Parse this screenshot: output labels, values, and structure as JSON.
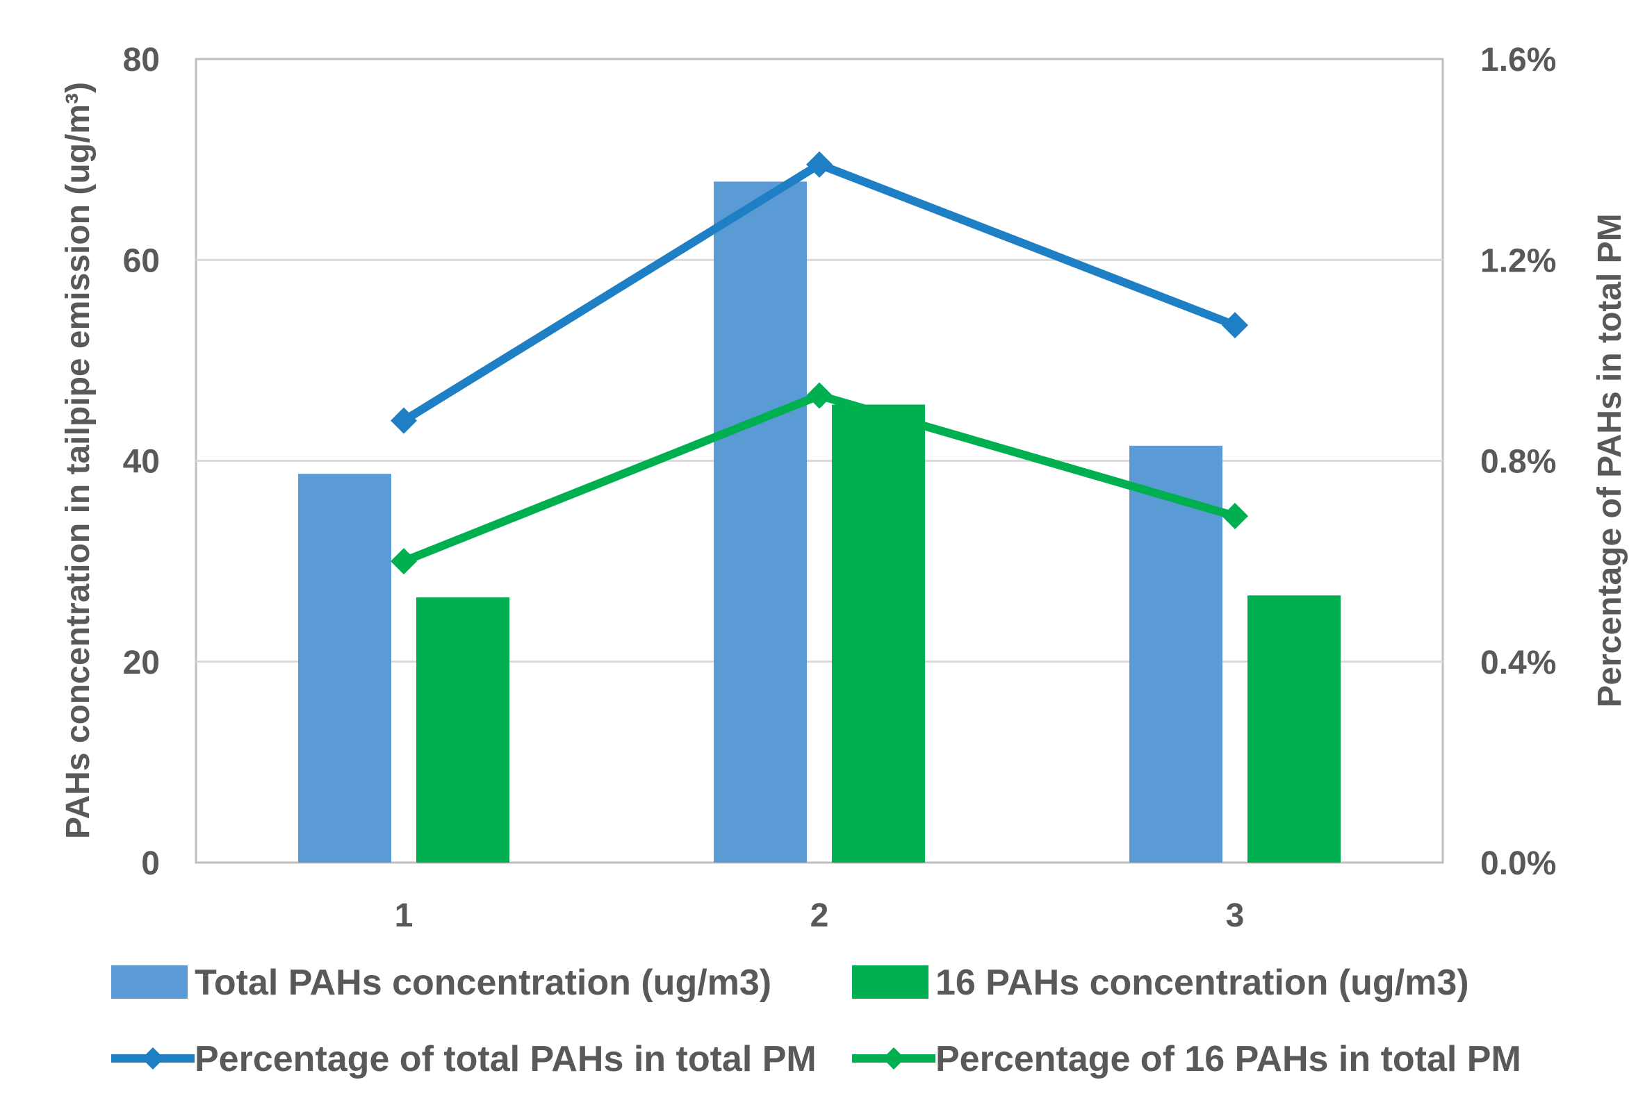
{
  "chart_data": {
    "type": "bar",
    "title": "",
    "categories": [
      "1",
      "2",
      "3"
    ],
    "ylabel": "PAHs concentration in tailpipe emission (ug/m³)",
    "ylim": [
      0,
      80
    ],
    "yticks": [
      "0",
      "20",
      "40",
      "60",
      "80"
    ],
    "y2label": "Percentage of PAHs in total PM",
    "y2lim": [
      0,
      0.016
    ],
    "y2ticks": [
      "0.0%",
      "0.4%",
      "0.8%",
      "1.2%",
      "1.6%"
    ],
    "grid": true,
    "legend_position": "bottom",
    "series": [
      {
        "name": "Total PAHs concentration (ug/m3)",
        "kind": "bar",
        "axis": "left",
        "color": "#5B9BD5",
        "values": [
          38.7,
          67.8,
          41.5
        ]
      },
      {
        "name": "16 PAHs concentration (ug/m3)",
        "kind": "bar",
        "axis": "left",
        "color": "#00B050",
        "values": [
          26.4,
          45.6,
          26.6
        ]
      },
      {
        "name": "Percentage of total PAHs in total PM",
        "kind": "line",
        "axis": "right",
        "color": "#1F7FC4",
        "values": [
          0.0088,
          0.0139,
          0.0107
        ]
      },
      {
        "name": "Percentage of 16 PAHs in total PM",
        "kind": "line",
        "axis": "right",
        "color": "#00B050",
        "values": [
          0.006,
          0.0093,
          0.0069
        ]
      }
    ]
  }
}
